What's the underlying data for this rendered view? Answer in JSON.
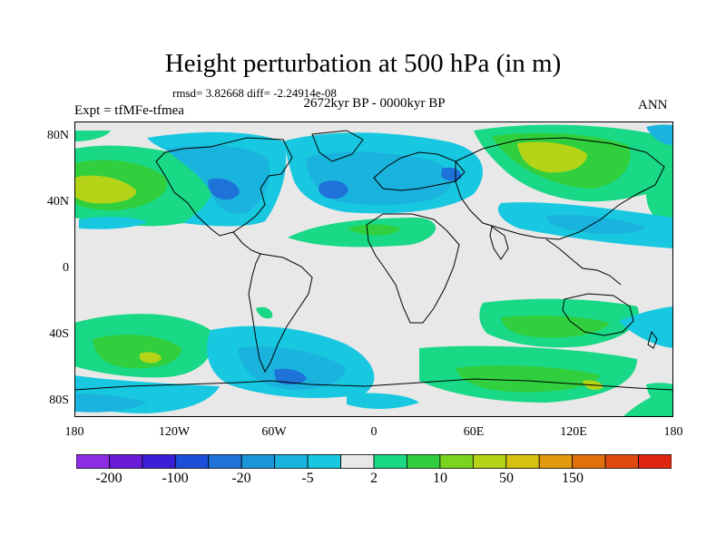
{
  "title": "Height perturbation at 500 hPa (in m)",
  "stats": "rmsd= 3.82668 diff= -2.24914e-08",
  "period": "2672kyr BP - 0000kyr BP",
  "experiment": "Expt = tfMFe-tfmea",
  "season": "ANN",
  "lat_labels": [
    "80N",
    "40N",
    "0",
    "40S",
    "80S"
  ],
  "lon_labels": [
    "180",
    "120W",
    "60W",
    "0",
    "60E",
    "120E",
    "180"
  ],
  "colorbar": {
    "colors": [
      "#8d2ee6",
      "#6a1bd8",
      "#3a1fd6",
      "#1c4fd9",
      "#1e72d8",
      "#1996d8",
      "#1ab3dd",
      "#18c8e0",
      "#e8e8e8",
      "#19d886",
      "#31cf3e",
      "#7bd41f",
      "#b5d418",
      "#d7c212",
      "#e09a0c",
      "#e0700b",
      "#e04a0c",
      "#e0260f"
    ],
    "labels": [
      "-200",
      "-100",
      "-20",
      "-5",
      "2",
      "10",
      "50",
      "150"
    ]
  },
  "map_colors": {
    "neutral": "#e8e8e8",
    "neg_light": "#18c8e0",
    "neg_mid": "#1ab3dd",
    "neg_strong": "#1e72d8",
    "pos_light": "#19d886",
    "pos_mid": "#31cf3e",
    "pos_strong": "#b5d418"
  }
}
